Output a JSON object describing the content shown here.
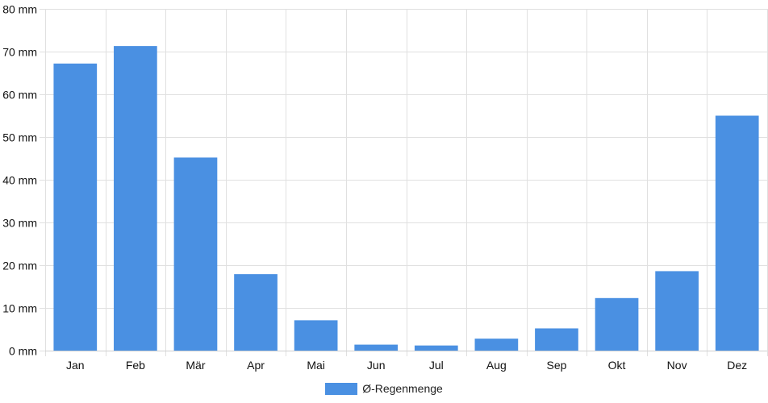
{
  "chart_data": {
    "type": "bar",
    "categories": [
      "Jan",
      "Feb",
      "Mär",
      "Apr",
      "Mai",
      "Jun",
      "Jul",
      "Aug",
      "Sep",
      "Okt",
      "Nov",
      "Dez"
    ],
    "series": [
      {
        "name": "Ø-Regenmenge",
        "values": [
          67.2,
          71.3,
          45.2,
          17.9,
          7.1,
          1.4,
          1.2,
          2.8,
          5.2,
          12.3,
          18.6,
          55.0
        ]
      }
    ],
    "y_unit": "mm",
    "ylim": [
      0,
      80
    ],
    "yticks": [
      0,
      10,
      20,
      30,
      40,
      50,
      60,
      70,
      80
    ],
    "grid": true,
    "legend_position": "bottom",
    "colors": {
      "bar": "#4a90e2",
      "grid": "#e0e0e0",
      "axis": "#cfcfcf"
    }
  }
}
